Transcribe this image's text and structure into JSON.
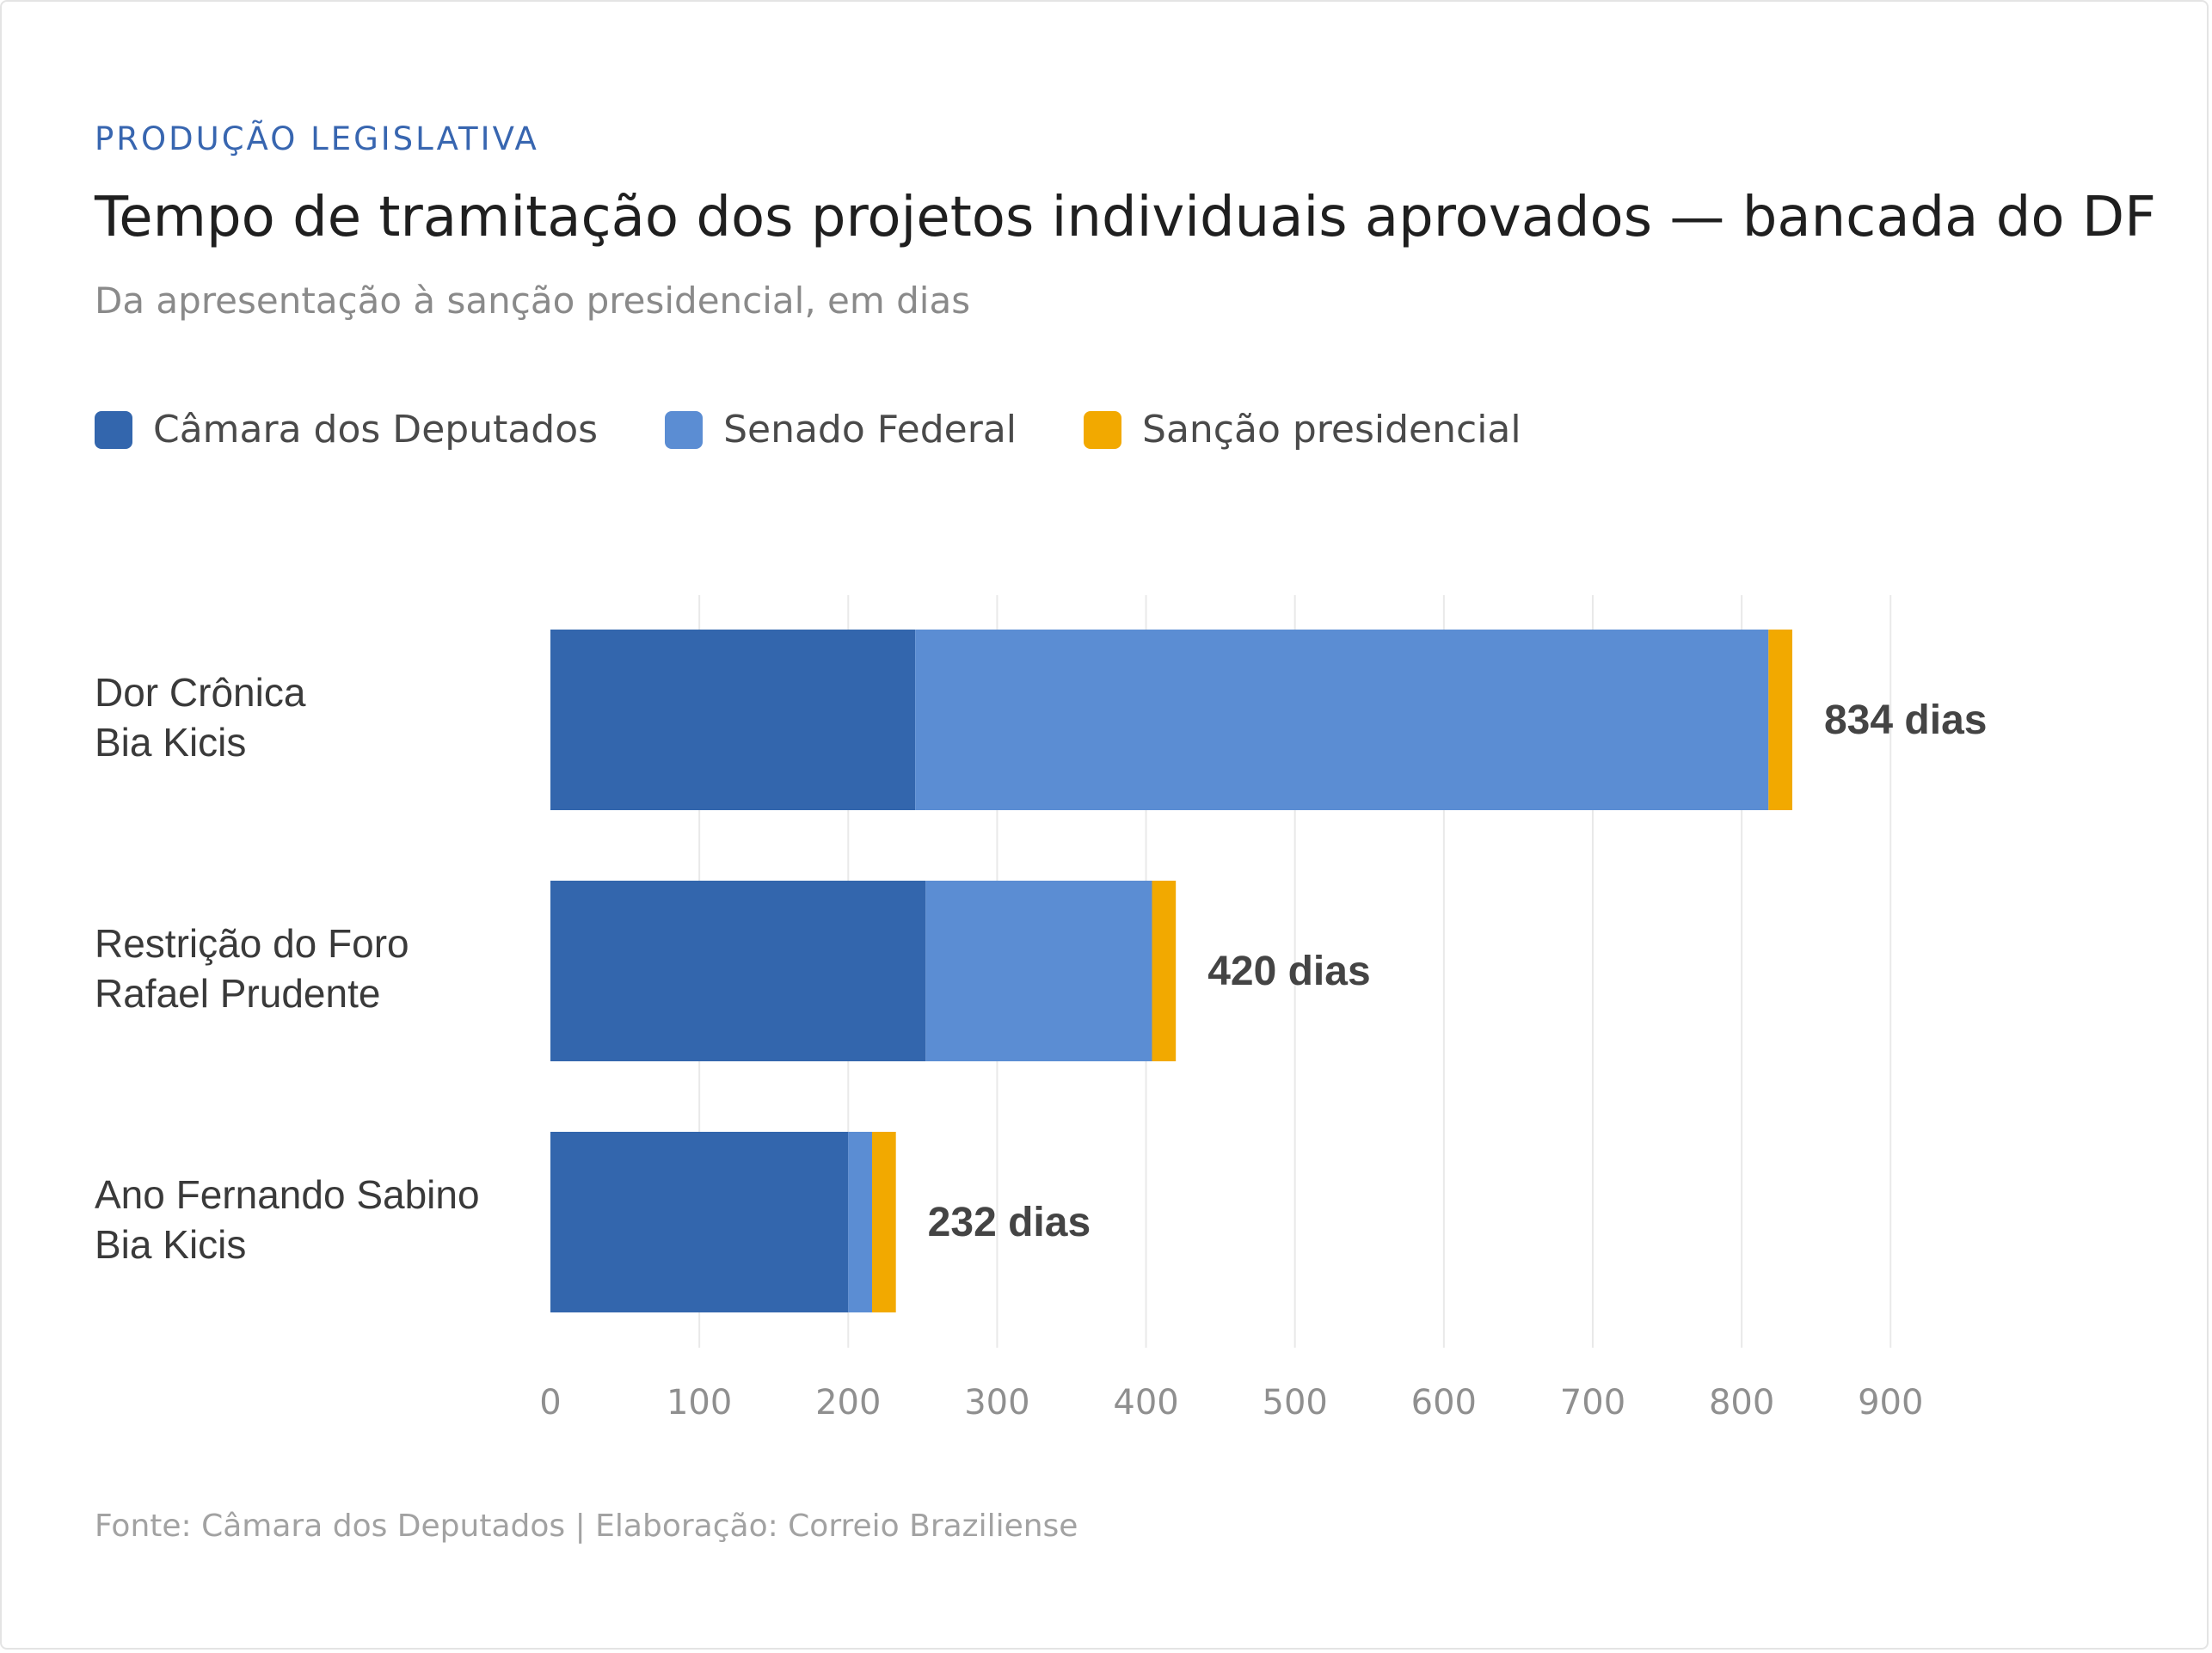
{
  "header": {
    "eyebrow": "PRODUÇÃO LEGISLATIVA",
    "title": "Tempo de tramitação dos projetos individuais aprovados — bancada do DF",
    "subtitle": "Da apresentação à sanção presidencial, em dias"
  },
  "legend": [
    {
      "label": "Câmara dos Deputados",
      "color": "#3366ad"
    },
    {
      "label": "Senado Federal",
      "color": "#5b8dd3"
    },
    {
      "label": "Sanção presidencial",
      "color": "#f2a900"
    }
  ],
  "chart_data": {
    "type": "bar",
    "orientation": "horizontal",
    "stacked": true,
    "title": "Tempo de tramitação dos projetos individuais aprovados — bancada do DF",
    "subtitle": "Da apresentação à sanção presidencial, em dias",
    "categories": [
      [
        "Dor Crônica",
        "Bia Kicis"
      ],
      [
        "Restrição do Foro",
        "Rafael Prudente"
      ],
      [
        "Ano Fernando Sabino",
        "Bia Kicis"
      ]
    ],
    "series": [
      {
        "name": "Câmara dos Deputados",
        "color": "#3366ad",
        "values": [
          245,
          252,
          200
        ]
      },
      {
        "name": "Senado Federal",
        "color": "#5b8dd3",
        "values": [
          573,
          152,
          16
        ]
      },
      {
        "name": "Sanção presidencial",
        "color": "#f2a900",
        "values": [
          16,
          16,
          16
        ]
      }
    ],
    "totals": [
      834,
      420,
      232
    ],
    "total_labels": [
      "834 dias",
      "420 dias",
      "232 dias"
    ],
    "xlim": [
      0,
      900
    ],
    "xticks": [
      0,
      100,
      200,
      300,
      400,
      500,
      600,
      700,
      800,
      900
    ],
    "grid": true,
    "legend_position": "top-left"
  },
  "footer": {
    "text": "Fonte: Câmara dos Deputados  |  Elaboração: Correio Braziliense"
  }
}
